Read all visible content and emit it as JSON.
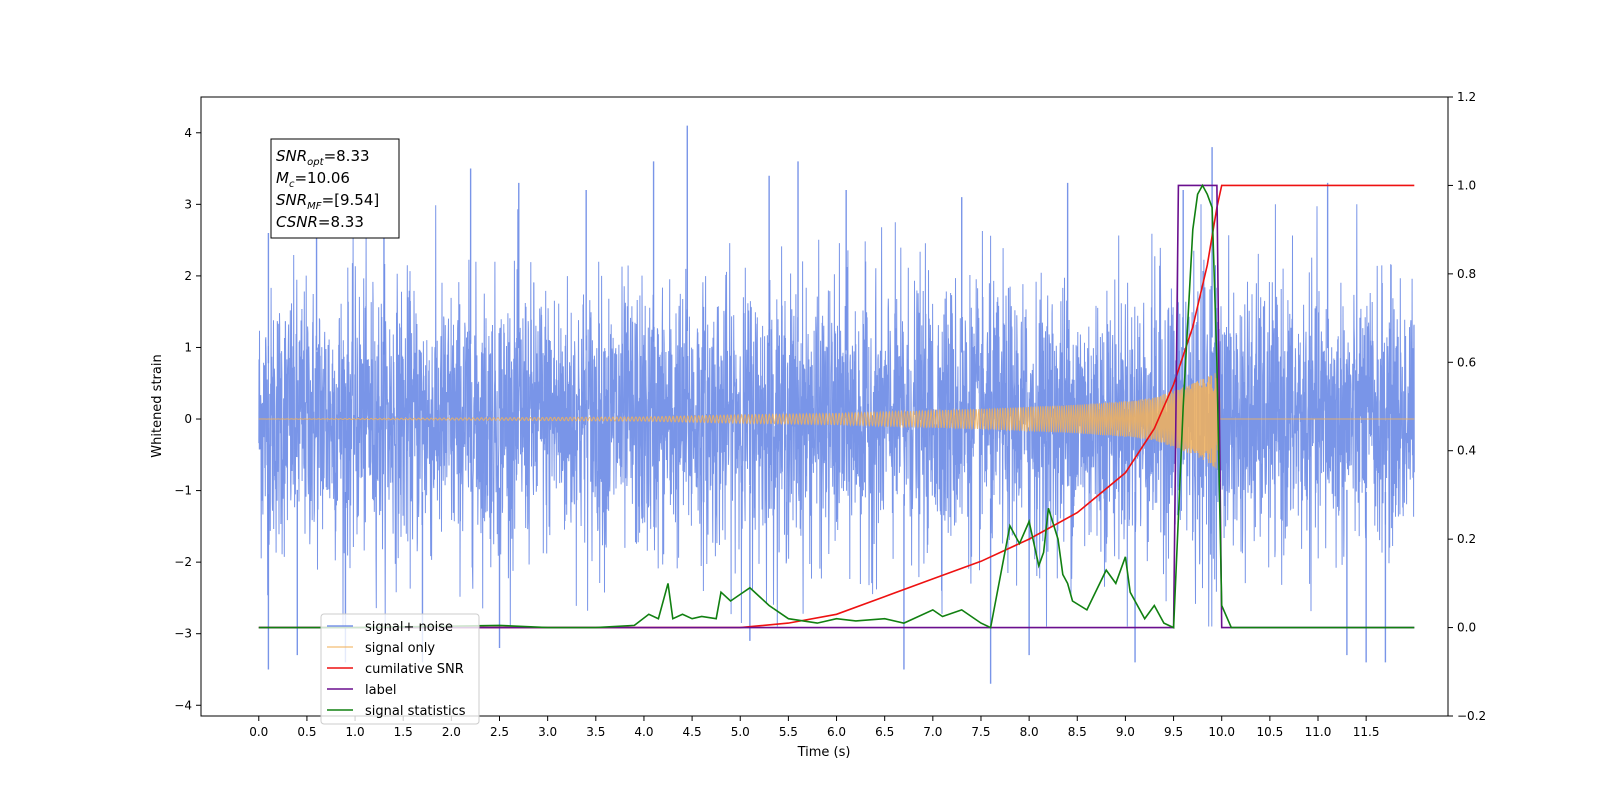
{
  "chart_data": {
    "type": "line",
    "xlabel": "Time (s)",
    "ylabel": "Whitened strain",
    "ylabel_right": "",
    "xlim": [
      -0.6,
      12.35
    ],
    "ylim": [
      -4.15,
      4.5
    ],
    "ylim_right": [
      -0.2,
      1.2
    ],
    "x_ticks": [
      0.0,
      0.5,
      1.0,
      1.5,
      2.0,
      2.5,
      3.0,
      3.5,
      4.0,
      4.5,
      5.0,
      5.5,
      6.0,
      6.5,
      7.0,
      7.5,
      8.0,
      8.5,
      9.0,
      9.5,
      10.0,
      10.5,
      11.0,
      11.5
    ],
    "x_tick_labels": [
      "0.0",
      "0.5",
      "1.0",
      "1.5",
      "2.0",
      "2.5",
      "3.0",
      "3.5",
      "4.0",
      "4.5",
      "5.0",
      "5.5",
      "6.0",
      "6.5",
      "7.0",
      "7.5",
      "8.0",
      "8.5",
      "9.0",
      "9.5",
      "10.0",
      "10.5",
      "11.0",
      "11.5"
    ],
    "y_ticks": [
      -4,
      -3,
      -2,
      -1,
      0,
      1,
      2,
      3,
      4
    ],
    "y_tick_labels": [
      "−4",
      "−3",
      "−2",
      "−1",
      "0",
      "1",
      "2",
      "3",
      "4"
    ],
    "y_ticks_right": [
      -0.2,
      0.0,
      0.2,
      0.4,
      0.6,
      0.8,
      1.0,
      1.2
    ],
    "y_tick_labels_right": [
      "−0.2",
      "0.0",
      "0.2",
      "0.4",
      "0.6",
      "0.8",
      "1.0",
      "1.2"
    ],
    "grid": false,
    "legend_position": "lower-left",
    "x_end": 12.0,
    "series": [
      {
        "name": "signal+ noise",
        "axis": "left",
        "color": "#6a8ae6",
        "kind": "noise",
        "band_envelope_x": [
          0,
          1,
          2,
          3,
          4,
          5,
          6,
          7,
          8,
          8.5,
          9,
          9.5,
          9.8,
          10,
          11,
          12
        ],
        "band_envelope_upper": [
          2.0,
          2.1,
          2.0,
          2.1,
          2.0,
          2.1,
          2.0,
          2.1,
          2.0,
          2.1,
          2.0,
          2.2,
          2.6,
          2.1,
          2.0,
          2.0
        ],
        "band_envelope_lower": [
          -2.1,
          -2.0,
          -2.1,
          -2.0,
          -2.1,
          -2.0,
          -2.1,
          -2.0,
          -2.0,
          -2.1,
          -2.0,
          -2.1,
          -2.5,
          -2.1,
          -2.0,
          -2.0
        ],
        "peaks": [
          {
            "x": 0.1,
            "y": 2.6
          },
          {
            "x": 0.6,
            "y": 3.2
          },
          {
            "x": 1.3,
            "y": 3.0
          },
          {
            "x": 2.2,
            "y": 3.5
          },
          {
            "x": 2.7,
            "y": 3.3
          },
          {
            "x": 3.4,
            "y": 3.2
          },
          {
            "x": 4.1,
            "y": 3.6
          },
          {
            "x": 4.45,
            "y": 4.1
          },
          {
            "x": 5.3,
            "y": 3.4
          },
          {
            "x": 5.6,
            "y": 3.6
          },
          {
            "x": 6.1,
            "y": 3.2
          },
          {
            "x": 7.3,
            "y": 3.1
          },
          {
            "x": 8.4,
            "y": 3.3
          },
          {
            "x": 9.6,
            "y": 3.2
          },
          {
            "x": 9.9,
            "y": 3.8
          },
          {
            "x": 11.1,
            "y": 3.3
          },
          {
            "x": 0.1,
            "y": -3.5
          },
          {
            "x": 0.4,
            "y": -3.3
          },
          {
            "x": 0.9,
            "y": -3.4
          },
          {
            "x": 1.7,
            "y": -3.4
          },
          {
            "x": 2.5,
            "y": -3.2
          },
          {
            "x": 5.1,
            "y": -3.1
          },
          {
            "x": 6.7,
            "y": -3.5
          },
          {
            "x": 7.6,
            "y": -3.7
          },
          {
            "x": 8.0,
            "y": -3.3
          },
          {
            "x": 9.1,
            "y": -3.4
          },
          {
            "x": 11.3,
            "y": -3.3
          },
          {
            "x": 11.5,
            "y": -3.4
          },
          {
            "x": 11.7,
            "y": -3.4
          }
        ]
      },
      {
        "name": "signal only",
        "axis": "left",
        "color": "#f2b15a",
        "kind": "chirp",
        "envelope_x": [
          0,
          4,
          5,
          6,
          6.5,
          7,
          7.5,
          8,
          8.5,
          9,
          9.3,
          9.5,
          9.7,
          9.85,
          9.95,
          10.0,
          12.0
        ],
        "envelope_y": [
          0.0,
          0.03,
          0.06,
          0.08,
          0.1,
          0.12,
          0.14,
          0.17,
          0.2,
          0.25,
          0.3,
          0.4,
          0.5,
          0.6,
          0.7,
          0.0,
          0.0
        ]
      },
      {
        "name": "cumilative SNR",
        "axis": "right",
        "color": "#ee1111",
        "x": [
          0,
          5.0,
          5.5,
          6.0,
          6.5,
          7.0,
          7.5,
          8.0,
          8.5,
          9.0,
          9.3,
          9.5,
          9.7,
          9.85,
          9.95,
          10.0,
          12.0
        ],
        "y": [
          0.0,
          0.0,
          0.01,
          0.03,
          0.07,
          0.11,
          0.15,
          0.2,
          0.26,
          0.35,
          0.45,
          0.55,
          0.68,
          0.82,
          0.95,
          1.0,
          1.0
        ]
      },
      {
        "name": "label",
        "axis": "right",
        "color": "#6a0f8e",
        "x": [
          0,
          9.5,
          9.55,
          9.95,
          10.0,
          12.0
        ],
        "y": [
          0.0,
          0.0,
          1.0,
          1.0,
          0.0,
          0.0
        ]
      },
      {
        "name": "signal statistics",
        "axis": "right",
        "color": "#118011",
        "x": [
          0,
          1.0,
          2.5,
          3.0,
          3.5,
          3.9,
          4.05,
          4.15,
          4.25,
          4.3,
          4.4,
          4.5,
          4.6,
          4.75,
          4.8,
          4.9,
          5.0,
          5.1,
          5.2,
          5.3,
          5.5,
          5.8,
          6.0,
          6.2,
          6.5,
          6.7,
          7.0,
          7.1,
          7.3,
          7.5,
          7.6,
          7.8,
          7.9,
          8.0,
          8.1,
          8.15,
          8.2,
          8.3,
          8.35,
          8.4,
          8.45,
          8.6,
          8.8,
          8.9,
          9.0,
          9.05,
          9.1,
          9.2,
          9.3,
          9.4,
          9.5,
          9.6,
          9.7,
          9.75,
          9.8,
          9.85,
          9.9,
          9.95,
          10.0,
          10.1,
          12.0
        ],
        "y": [
          0.0,
          0.0,
          0.005,
          0.0,
          0.0,
          0.005,
          0.03,
          0.02,
          0.1,
          0.02,
          0.03,
          0.02,
          0.025,
          0.02,
          0.08,
          0.06,
          0.075,
          0.09,
          0.07,
          0.05,
          0.02,
          0.01,
          0.02,
          0.015,
          0.02,
          0.01,
          0.04,
          0.025,
          0.04,
          0.01,
          0.0,
          0.23,
          0.19,
          0.24,
          0.14,
          0.17,
          0.27,
          0.2,
          0.12,
          0.1,
          0.06,
          0.04,
          0.13,
          0.1,
          0.16,
          0.08,
          0.06,
          0.02,
          0.05,
          0.01,
          0.0,
          0.5,
          0.9,
          0.98,
          1.0,
          0.98,
          0.95,
          0.6,
          0.05,
          0.0,
          0.0
        ]
      }
    ],
    "legend": [
      {
        "name": "signal+ noise",
        "color": "#6a8ae6",
        "alpha": 0.9
      },
      {
        "name": "signal only",
        "color": "#f2b15a",
        "alpha": 0.7
      },
      {
        "name": "cumilative SNR",
        "color": "#ee1111",
        "alpha": 1
      },
      {
        "name": "label",
        "color": "#6a0f8e",
        "alpha": 1
      },
      {
        "name": "signal statistics",
        "color": "#118011",
        "alpha": 1
      }
    ],
    "annotation": {
      "position": "upper-left",
      "lines": [
        {
          "base": "SNR",
          "sub": "opt",
          "value": "=8.33"
        },
        {
          "base": "M",
          "sub": "c",
          "value": "=10.06"
        },
        {
          "base": "SNR",
          "sub": "MF",
          "value": "=[9.54]"
        },
        {
          "base": "CSNR",
          "sub": "",
          "value": "=8.33"
        }
      ]
    }
  }
}
